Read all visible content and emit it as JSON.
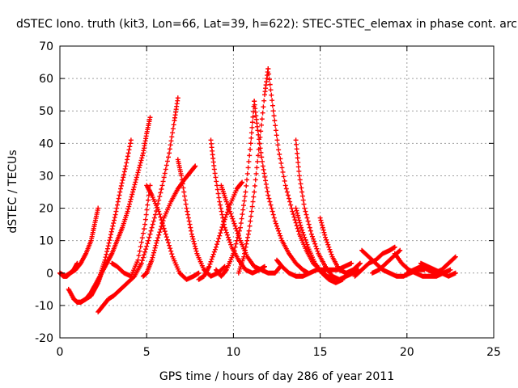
{
  "chart_data": {
    "type": "scatter",
    "title": "dSTEC Iono. truth (kit3, Lon=66, Lat=39, h=622): STEC-STEC_elemax in phase cont. arc",
    "xlabel": "GPS time / hours of day 286 of year 2011",
    "ylabel": "dSTEC  / TECUs",
    "xlim": [
      0,
      25
    ],
    "ylim": [
      -20,
      70
    ],
    "xticks": [
      0,
      5,
      10,
      15,
      20,
      25
    ],
    "yticks": [
      -20,
      -10,
      0,
      10,
      20,
      30,
      40,
      50,
      60,
      70
    ],
    "xtick_labels": [
      "0",
      "5",
      "10",
      "15",
      "20",
      "25"
    ],
    "ytick_labels": [
      "-20",
      "-10",
      "0",
      "10",
      "20",
      "30",
      "40",
      "50",
      "60",
      "70"
    ],
    "grid": true,
    "marker": "+",
    "color": "#ff0000",
    "series": [
      {
        "x": [
          0.0,
          0.3,
          0.6,
          0.9,
          1.2,
          1.5,
          1.8,
          2.0,
          2.2
        ],
        "y": [
          0,
          -1,
          0,
          1,
          3,
          6,
          10,
          15,
          20
        ]
      },
      {
        "x": [
          0.5,
          0.8,
          1.0,
          1.2,
          1.5,
          1.8,
          2.0,
          2.3,
          2.6,
          2.9,
          3.2,
          3.5,
          3.8,
          4.1
        ],
        "y": [
          -5,
          -8,
          -9,
          -9,
          -8,
          -6,
          -4,
          -1,
          4,
          11,
          18,
          26,
          33,
          41
        ]
      },
      {
        "x": [
          1.0,
          1.2,
          1.5,
          1.8,
          2.0,
          2.2,
          2.4,
          2.7,
          3.0,
          3.3,
          3.6,
          3.9,
          4.2,
          4.5,
          4.8,
          5.0,
          5.2
        ],
        "y": [
          -9,
          -9,
          -8,
          -7,
          -5,
          -3,
          0,
          3,
          6,
          10,
          14,
          19,
          25,
          31,
          37,
          43,
          48
        ]
      },
      {
        "x": [
          2.2,
          2.5,
          2.8,
          3.1,
          3.5,
          3.9,
          4.3,
          4.7,
          5.1,
          5.5,
          5.9,
          6.3,
          6.6,
          6.8
        ],
        "y": [
          -12,
          -10,
          -8,
          -7,
          -5,
          -3,
          -1,
          3,
          10,
          18,
          27,
          37,
          47,
          54
        ]
      },
      {
        "x": [
          3.0,
          3.3,
          3.7,
          4.1,
          4.5,
          4.9,
          5.2
        ],
        "y": [
          3,
          2,
          0,
          -1,
          4,
          15,
          27
        ]
      },
      {
        "x": [
          4.8,
          5.0,
          5.3,
          5.6,
          6.0,
          6.4,
          6.8,
          7.2,
          7.5,
          7.8
        ],
        "y": [
          -1,
          0,
          4,
          10,
          17,
          22,
          26,
          29,
          31,
          33
        ]
      },
      {
        "x": [
          5.0,
          5.3,
          5.7,
          6.1,
          6.5,
          6.9,
          7.3,
          7.7,
          8.0
        ],
        "y": [
          27,
          24,
          19,
          12,
          5,
          0,
          -2,
          -1,
          0
        ]
      },
      {
        "x": [
          6.8,
          7.0,
          7.3,
          7.6,
          7.9,
          8.3,
          8.7,
          9.1,
          9.5
        ],
        "y": [
          35,
          30,
          20,
          12,
          6,
          1,
          -1,
          0,
          2
        ]
      },
      {
        "x": [
          8.0,
          8.3,
          8.6,
          9.0,
          9.4,
          9.8,
          10.2,
          10.5
        ],
        "y": [
          -2,
          -1,
          2,
          8,
          15,
          21,
          26,
          28
        ]
      },
      {
        "x": [
          8.7,
          8.9,
          9.2,
          9.5,
          9.9,
          10.3,
          10.7,
          11.1,
          11.5,
          11.8
        ],
        "y": [
          41,
          32,
          22,
          14,
          8,
          4,
          1,
          0,
          1,
          2
        ]
      },
      {
        "x": [
          9.3,
          9.6,
          10.0,
          10.4,
          10.8,
          11.2,
          11.6,
          12.0,
          12.4,
          12.7
        ],
        "y": [
          27,
          22,
          16,
          10,
          5,
          2,
          1,
          0,
          0,
          2
        ]
      },
      {
        "x": [
          9.0,
          9.3,
          9.6,
          10.0,
          10.4,
          10.7,
          11.0,
          11.2
        ],
        "y": [
          1,
          -1,
          1,
          6,
          14,
          25,
          40,
          53
        ]
      },
      {
        "x": [
          11.2,
          11.4,
          11.7,
          12.0,
          12.4,
          12.8,
          13.2,
          13.6,
          14.0,
          14.3
        ],
        "y": [
          53,
          44,
          33,
          24,
          16,
          10,
          6,
          3,
          1,
          0
        ]
      },
      {
        "x": [
          10.3,
          10.6,
          10.9,
          11.2,
          11.5,
          11.8,
          12.0
        ],
        "y": [
          0,
          5,
          13,
          25,
          40,
          55,
          63
        ]
      },
      {
        "x": [
          12.0,
          12.3,
          12.6,
          13.0,
          13.4,
          13.8,
          14.2,
          14.6,
          15.0,
          15.4,
          15.8
        ],
        "y": [
          63,
          50,
          38,
          27,
          19,
          12,
          7,
          3,
          1,
          -1,
          -2
        ]
      },
      {
        "x": [
          13.6,
          13.8,
          14.1,
          14.5,
          14.9,
          15.3,
          15.7,
          16.1,
          16.5,
          16.9,
          17.2
        ],
        "y": [
          41,
          30,
          20,
          12,
          6,
          2,
          -1,
          -2,
          -1,
          0,
          1
        ]
      },
      {
        "x": [
          13.6,
          13.9,
          14.3,
          14.7,
          15.1,
          15.5,
          15.9,
          16.3
        ],
        "y": [
          20,
          14,
          8,
          3,
          0,
          -2,
          -3,
          -2
        ]
      },
      {
        "x": [
          15.0,
          15.3,
          15.7,
          16.1,
          16.5,
          16.9,
          17.3
        ],
        "y": [
          17,
          11,
          5,
          1,
          0,
          1,
          3
        ]
      },
      {
        "x": [
          12.5,
          12.8,
          13.2,
          13.6,
          14.0,
          14.4,
          14.8,
          15.2,
          15.6,
          16.0,
          16.4,
          16.8
        ],
        "y": [
          4,
          2,
          0,
          -1,
          -1,
          0,
          1,
          1,
          1,
          1,
          2,
          3
        ]
      },
      {
        "x": [
          17.0,
          17.4,
          17.8,
          18.2,
          18.6,
          19.0,
          19.3
        ],
        "y": [
          -1,
          1,
          3,
          4,
          6,
          7,
          8
        ]
      },
      {
        "x": [
          17.4,
          17.8,
          18.2,
          18.6,
          19.0,
          19.4,
          19.8,
          20.2,
          20.6,
          21.0
        ],
        "y": [
          7,
          5,
          3,
          1,
          0,
          -1,
          -1,
          0,
          1,
          1
        ]
      },
      {
        "x": [
          18.0,
          18.4,
          18.8,
          19.2,
          19.6
        ],
        "y": [
          0,
          1,
          3,
          5,
          7
        ]
      },
      {
        "x": [
          19.3,
          19.7,
          20.1,
          20.5,
          20.9,
          21.3,
          21.7,
          22.1,
          22.5
        ],
        "y": [
          6,
          3,
          1,
          0,
          -1,
          -1,
          -1,
          0,
          1
        ]
      },
      {
        "x": [
          20.0,
          20.4,
          20.8,
          21.2,
          21.6,
          22.0,
          22.4,
          22.8
        ],
        "y": [
          0,
          1,
          2,
          1,
          0,
          1,
          3,
          5
        ]
      },
      {
        "x": [
          20.8,
          21.2,
          21.6,
          22.0,
          22.4,
          22.8
        ],
        "y": [
          3,
          2,
          1,
          0,
          -1,
          0
        ]
      },
      {
        "x": [
          0.0,
          0.2,
          0.4,
          0.6,
          0.8,
          1.0
        ],
        "y": [
          0,
          -1,
          -1,
          0,
          1,
          3
        ]
      }
    ]
  }
}
